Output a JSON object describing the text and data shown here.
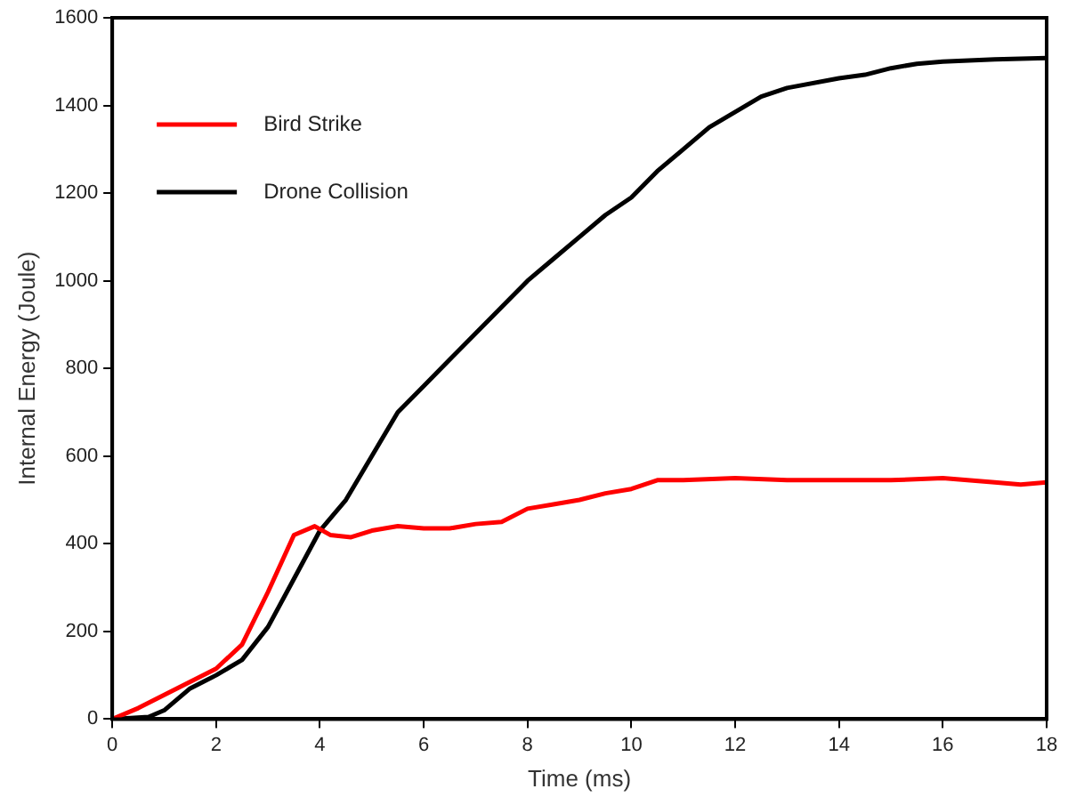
{
  "chart_data": {
    "type": "line",
    "xlabel": "Time (ms)",
    "ylabel": "Internal Energy (Joule)",
    "xlim": [
      0,
      18
    ],
    "xticks": [
      0,
      2,
      4,
      6,
      8,
      10,
      12,
      14,
      16,
      18
    ],
    "ylim": [
      0,
      1600
    ],
    "yticks": [
      0,
      200,
      400,
      600,
      800,
      1000,
      1200,
      1400,
      1600
    ],
    "grid": false,
    "legend": "top left",
    "marker": "none",
    "line_style": "solid",
    "series": [
      {
        "name": "Bird Strike",
        "color": "#ff0000",
        "x": [
          0,
          0.5,
          1,
          1.5,
          2,
          2.5,
          3,
          3.5,
          3.9,
          4.2,
          4.6,
          5,
          5.5,
          6,
          6.5,
          7,
          7.5,
          8,
          8.5,
          9,
          9.5,
          10,
          10.5,
          11,
          12,
          13,
          14,
          15,
          16,
          17,
          17.5,
          18
        ],
        "values": [
          0,
          25,
          55,
          85,
          115,
          170,
          290,
          420,
          440,
          420,
          415,
          430,
          440,
          435,
          435,
          445,
          450,
          480,
          490,
          500,
          515,
          525,
          545,
          545,
          550,
          545,
          545,
          545,
          550,
          540,
          535,
          540
        ]
      },
      {
        "name": "Drone Collision",
        "color": "#000000",
        "x": [
          0,
          0.7,
          1,
          1.5,
          2,
          2.5,
          3,
          3.5,
          4,
          4.5,
          5,
          5.5,
          6,
          6.5,
          7,
          7.5,
          8,
          8.5,
          9,
          9.5,
          10,
          10.5,
          11,
          11.5,
          12,
          12.5,
          13,
          14,
          14.5,
          15,
          15.5,
          16,
          17,
          18
        ],
        "values": [
          0,
          5,
          20,
          70,
          100,
          135,
          210,
          320,
          430,
          500,
          600,
          700,
          760,
          820,
          880,
          940,
          1000,
          1050,
          1100,
          1150,
          1190,
          1250,
          1300,
          1350,
          1385,
          1420,
          1440,
          1462,
          1470,
          1485,
          1495,
          1500,
          1505,
          1508
        ]
      }
    ]
  }
}
